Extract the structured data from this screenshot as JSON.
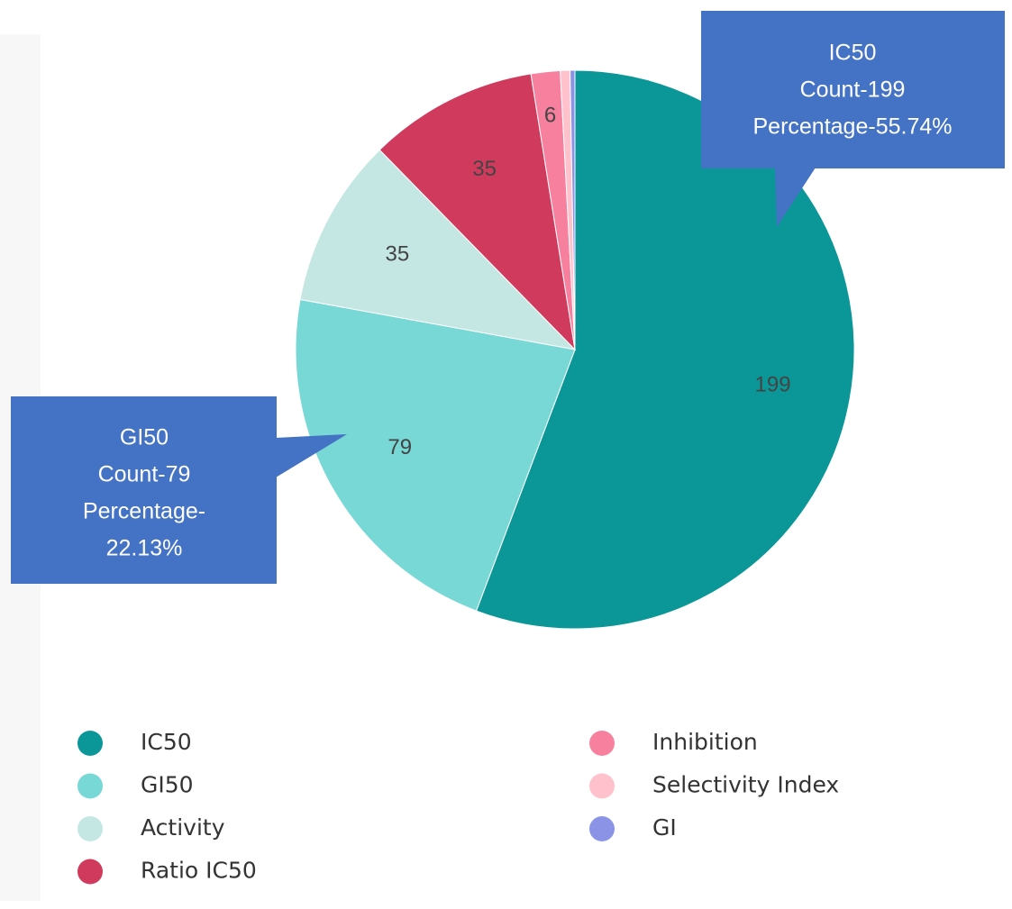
{
  "chart_data": {
    "type": "pie",
    "categories": [
      "IC50",
      "GI50",
      "Activity",
      "Ratio IC50",
      "Inhibition",
      "Selectivity Index",
      "GI"
    ],
    "values": [
      199,
      79,
      35,
      35,
      6,
      2,
      1
    ],
    "colors": [
      "#0b9797",
      "#78d8d5",
      "#c4e7e3",
      "#d03a5d",
      "#f7809f",
      "#ffc1cc",
      "#8b93e6"
    ],
    "direction": "clockwise",
    "annotations": [
      {
        "lines": [
          "IC50",
          "Count-199",
          "Percentage-55.74%"
        ]
      },
      {
        "lines": [
          "GI50",
          "Count-79",
          "Percentage-",
          "22.13%"
        ]
      }
    ]
  }
}
